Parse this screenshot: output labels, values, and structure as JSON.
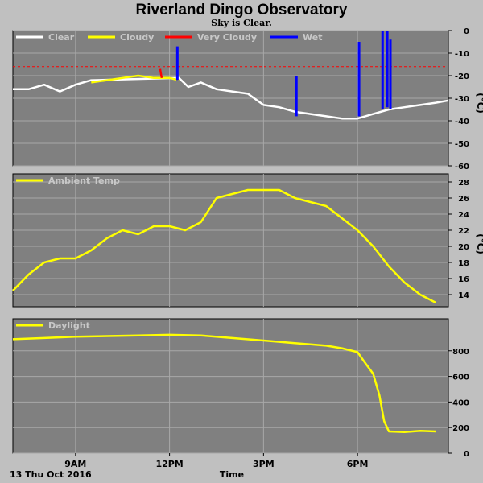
{
  "header": {
    "title": "Riverland Dingo Observatory",
    "subtitle": "Sky is Clear."
  },
  "footer": {
    "date_label": "13 Thu Oct 2016",
    "x_axis_label": "Time"
  },
  "colors": {
    "background": "#c0c0c0",
    "plot_background": "#808080",
    "grid": "#a8a8a8",
    "clear": "#ffffff",
    "cloudy": "#ffff00",
    "very_cloudy": "#ff0000",
    "wet": "#0000ff",
    "temperature": "#ffff00",
    "daylight": "#ffff00",
    "threshold": "#ff0000"
  },
  "chart_data": [
    {
      "type": "line",
      "name": "sky-temperature",
      "unit_label": "(°C)",
      "ylim": [
        -60,
        0
      ],
      "y_ticks": [
        0,
        -10,
        -20,
        -30,
        -40,
        -50,
        -60
      ],
      "xlim": [
        7.0,
        20.9
      ],
      "x_ticks": [
        9,
        12,
        15,
        18
      ],
      "x_tick_labels": [
        "9AM",
        "12PM",
        "3PM",
        "6PM"
      ],
      "threshold": -16,
      "legend": [
        "Clear",
        "Cloudy",
        "Very Cloudy",
        "Wet"
      ],
      "series": [
        {
          "name": "Clear",
          "color": "#ffffff",
          "points": [
            [
              7.0,
              -26
            ],
            [
              7.5,
              -26
            ],
            [
              8.0,
              -24
            ],
            [
              8.5,
              -27
            ],
            [
              9.0,
              -24
            ],
            [
              9.5,
              -22
            ],
            [
              12.3,
              -21
            ],
            [
              12.6,
              -25
            ],
            [
              13.0,
              -23
            ],
            [
              13.5,
              -26
            ],
            [
              14.0,
              -27
            ],
            [
              14.5,
              -28
            ],
            [
              15.0,
              -33
            ],
            [
              15.5,
              -34
            ],
            [
              16.0,
              -36
            ],
            [
              16.5,
              -37
            ],
            [
              17.0,
              -38
            ],
            [
              17.5,
              -39
            ],
            [
              18.0,
              -39
            ],
            [
              18.5,
              -37
            ],
            [
              19.0,
              -35
            ],
            [
              19.5,
              -34
            ],
            [
              20.0,
              -33
            ],
            [
              20.5,
              -32
            ],
            [
              20.9,
              -31
            ]
          ]
        },
        {
          "name": "Cloudy",
          "color": "#ffff00",
          "points": [
            [
              9.5,
              -23
            ],
            [
              10.0,
              -22
            ],
            [
              10.5,
              -21
            ],
            [
              11.0,
              -20
            ],
            [
              11.5,
              -21
            ],
            [
              12.0,
              -21
            ],
            [
              12.3,
              -22
            ]
          ]
        },
        {
          "name": "Very Cloudy",
          "color": "#ff0000",
          "points": [
            [
              11.7,
              -17
            ],
            [
              11.75,
              -21
            ]
          ]
        },
        {
          "name": "Wet",
          "color": "#0000ff",
          "spikes": [
            [
              12.25,
              -7,
              -22
            ],
            [
              16.05,
              -20,
              -38
            ],
            [
              18.05,
              -5,
              -38
            ],
            [
              18.8,
              0,
              -35
            ],
            [
              18.95,
              0,
              -34
            ],
            [
              19.05,
              -4,
              -35
            ]
          ]
        }
      ]
    },
    {
      "type": "line",
      "name": "Ambient Temp",
      "unit_label": "(°C)",
      "ylim": [
        12.5,
        29
      ],
      "y_ticks": [
        14,
        16,
        18,
        20,
        22,
        24,
        26,
        28
      ],
      "xlim": [
        7.0,
        20.9
      ],
      "legend": [
        "Ambient Temp"
      ],
      "series": [
        {
          "name": "Ambient Temp",
          "color": "#ffff00",
          "points": [
            [
              7.0,
              14.5
            ],
            [
              7.5,
              16.5
            ],
            [
              8.0,
              18.0
            ],
            [
              8.5,
              18.5
            ],
            [
              9.0,
              18.5
            ],
            [
              9.5,
              19.5
            ],
            [
              10.0,
              21.0
            ],
            [
              10.5,
              22.0
            ],
            [
              11.0,
              21.5
            ],
            [
              11.5,
              22.5
            ],
            [
              12.0,
              22.5
            ],
            [
              12.5,
              22.0
            ],
            [
              13.0,
              23.0
            ],
            [
              13.5,
              26.0
            ],
            [
              14.0,
              26.5
            ],
            [
              14.5,
              27.0
            ],
            [
              15.0,
              27.0
            ],
            [
              15.5,
              27.0
            ],
            [
              16.0,
              26.0
            ],
            [
              16.5,
              25.5
            ],
            [
              17.0,
              25.0
            ],
            [
              17.5,
              23.5
            ],
            [
              18.0,
              22.0
            ],
            [
              18.5,
              20.0
            ],
            [
              19.0,
              17.5
            ],
            [
              19.5,
              15.5
            ],
            [
              20.0,
              14.0
            ],
            [
              20.5,
              13.0
            ]
          ]
        }
      ]
    },
    {
      "type": "line",
      "name": "Daylight",
      "ylim": [
        0,
        1050
      ],
      "y_ticks": [
        0,
        200,
        400,
        600,
        800
      ],
      "xlim": [
        7.0,
        20.9
      ],
      "legend": [
        "Daylight"
      ],
      "series": [
        {
          "name": "Daylight",
          "color": "#ffff00",
          "points": [
            [
              7.0,
              890
            ],
            [
              8.0,
              900
            ],
            [
              9.0,
              910
            ],
            [
              10.0,
              915
            ],
            [
              11.0,
              920
            ],
            [
              12.0,
              925
            ],
            [
              13.0,
              920
            ],
            [
              14.0,
              900
            ],
            [
              15.0,
              880
            ],
            [
              16.0,
              860
            ],
            [
              17.0,
              840
            ],
            [
              17.5,
              820
            ],
            [
              18.0,
              790
            ],
            [
              18.2,
              720
            ],
            [
              18.5,
              620
            ],
            [
              18.7,
              450
            ],
            [
              18.85,
              250
            ],
            [
              19.0,
              170
            ],
            [
              19.5,
              165
            ],
            [
              20.0,
              175
            ],
            [
              20.5,
              170
            ]
          ]
        }
      ]
    }
  ]
}
